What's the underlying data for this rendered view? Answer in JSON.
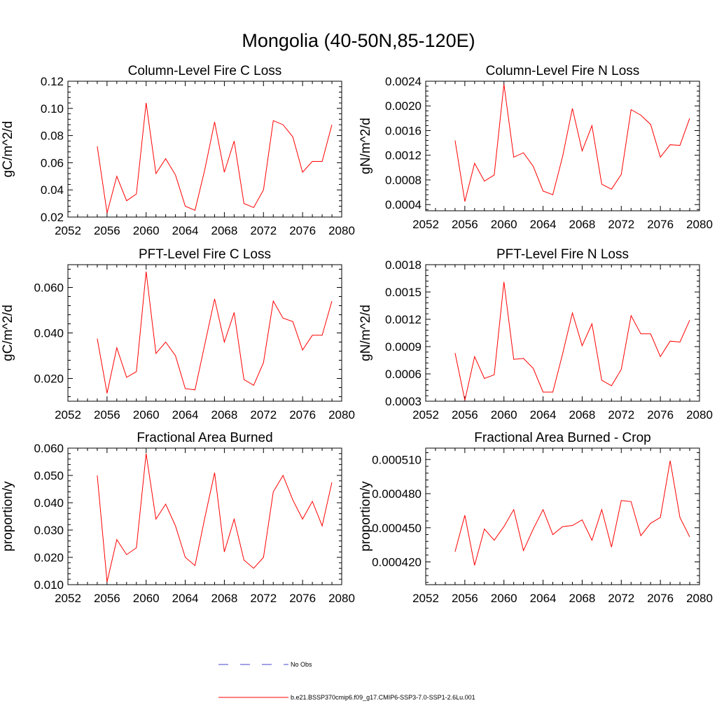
{
  "title": "Mongolia (40-50N,85-120E)",
  "colors": {
    "series": "#ff0000",
    "obs": "#4444cc",
    "axis": "#000000"
  },
  "legend": {
    "items": [
      {
        "label": "No Obs",
        "style": "dashed",
        "color": "#4444cc"
      },
      {
        "label": "b.e21.BSSP370cmip6.f09_g17.CMIP6-SSP3-7.0-SSP1-2.6Lu.001",
        "style": "solid",
        "color": "#ff0000"
      }
    ]
  },
  "chart_data": [
    {
      "type": "line",
      "title": "Column-Level Fire C Loss",
      "ylabel": "gC/m^2/d",
      "xlim": [
        2052,
        2080
      ],
      "ylim": [
        0.02,
        0.12
      ],
      "xticks": [
        2052,
        2056,
        2060,
        2064,
        2068,
        2072,
        2076,
        2080
      ],
      "yticks": [
        "0.02",
        "0.04",
        "0.06",
        "0.08",
        "0.10",
        "0.12"
      ],
      "x": [
        2055,
        2056,
        2057,
        2058,
        2059,
        2060,
        2061,
        2062,
        2063,
        2064,
        2065,
        2066,
        2067,
        2068,
        2069,
        2070,
        2071,
        2072,
        2073,
        2074,
        2075,
        2076,
        2077,
        2078,
        2079
      ],
      "values": [
        0.072,
        0.023,
        0.05,
        0.032,
        0.037,
        0.104,
        0.052,
        0.063,
        0.051,
        0.028,
        0.025,
        0.055,
        0.09,
        0.053,
        0.076,
        0.03,
        0.027,
        0.04,
        0.091,
        0.088,
        0.079,
        0.053,
        0.061,
        0.061,
        0.088
      ]
    },
    {
      "type": "line",
      "title": "Column-Level Fire N Loss",
      "ylabel": "gN/m^2/d",
      "xlim": [
        2052,
        2080
      ],
      "ylim": [
        0.0003,
        0.0024
      ],
      "xticks": [
        2052,
        2056,
        2060,
        2064,
        2068,
        2072,
        2076,
        2080
      ],
      "yticks": [
        "0.0004",
        "0.0008",
        "0.0012",
        "0.0016",
        "0.0020",
        "0.0024"
      ],
      "x": [
        2055,
        2056,
        2057,
        2058,
        2059,
        2060,
        2061,
        2062,
        2063,
        2064,
        2065,
        2066,
        2067,
        2068,
        2069,
        2070,
        2071,
        2072,
        2073,
        2074,
        2075,
        2076,
        2077,
        2078,
        2079
      ],
      "values": [
        0.00144,
        0.00045,
        0.00107,
        0.00078,
        0.00088,
        0.00235,
        0.00117,
        0.00124,
        0.00102,
        0.00062,
        0.00056,
        0.00118,
        0.00196,
        0.00127,
        0.00168,
        0.00073,
        0.00065,
        0.00089,
        0.00194,
        0.00185,
        0.0017,
        0.00117,
        0.00137,
        0.00136,
        0.0018
      ]
    },
    {
      "type": "line",
      "title": "PFT-Level Fire C Loss",
      "ylabel": "gC/m^2/d",
      "xlim": [
        2052,
        2080
      ],
      "ylim": [
        0.01,
        0.07
      ],
      "xticks": [
        2052,
        2056,
        2060,
        2064,
        2068,
        2072,
        2076,
        2080
      ],
      "yticks": [
        "0.020",
        "0.040",
        "0.060"
      ],
      "ytick_values": [
        0.02,
        0.04,
        0.06
      ],
      "x": [
        2055,
        2056,
        2057,
        2058,
        2059,
        2060,
        2061,
        2062,
        2063,
        2064,
        2065,
        2066,
        2067,
        2068,
        2069,
        2070,
        2071,
        2072,
        2073,
        2074,
        2075,
        2076,
        2077,
        2078,
        2079
      ],
      "values": [
        0.0375,
        0.0135,
        0.0335,
        0.0205,
        0.023,
        0.067,
        0.031,
        0.036,
        0.03,
        0.0155,
        0.015,
        0.035,
        0.055,
        0.036,
        0.049,
        0.0195,
        0.017,
        0.027,
        0.054,
        0.0465,
        0.045,
        0.0325,
        0.039,
        0.039,
        0.054
      ]
    },
    {
      "type": "line",
      "title": "PFT-Level Fire N Loss",
      "ylabel": "gN/m^2/d",
      "xlim": [
        2052,
        2080
      ],
      "ylim": [
        0.0003,
        0.0018
      ],
      "xticks": [
        2052,
        2056,
        2060,
        2064,
        2068,
        2072,
        2076,
        2080
      ],
      "yticks": [
        "0.0003",
        "0.0006",
        "0.0009",
        "0.0012",
        "0.0015",
        "0.0018"
      ],
      "x": [
        2055,
        2056,
        2057,
        2058,
        2059,
        2060,
        2061,
        2062,
        2063,
        2064,
        2065,
        2066,
        2067,
        2068,
        2069,
        2070,
        2071,
        2072,
        2073,
        2074,
        2075,
        2076,
        2077,
        2078,
        2079
      ],
      "values": [
        0.00083,
        0.00031,
        0.00079,
        0.00055,
        0.00059,
        0.00161,
        0.00076,
        0.00077,
        0.00066,
        0.0004,
        0.0004,
        0.00082,
        0.00127,
        0.00091,
        0.00115,
        0.00053,
        0.00047,
        0.00065,
        0.00124,
        0.00104,
        0.00104,
        0.00079,
        0.00096,
        0.00095,
        0.00119
      ]
    },
    {
      "type": "line",
      "title": "Fractional Area Burned",
      "ylabel": "proportion/y",
      "xlim": [
        2052,
        2080
      ],
      "ylim": [
        0.01,
        0.06
      ],
      "xticks": [
        2052,
        2056,
        2060,
        2064,
        2068,
        2072,
        2076,
        2080
      ],
      "yticks": [
        "0.010",
        "0.020",
        "0.030",
        "0.040",
        "0.050",
        "0.060"
      ],
      "x": [
        2055,
        2056,
        2057,
        2058,
        2059,
        2060,
        2061,
        2062,
        2063,
        2064,
        2065,
        2066,
        2067,
        2068,
        2069,
        2070,
        2071,
        2072,
        2073,
        2074,
        2075,
        2076,
        2077,
        2078,
        2079
      ],
      "values": [
        0.05,
        0.011,
        0.0265,
        0.021,
        0.0235,
        0.058,
        0.034,
        0.0395,
        0.0315,
        0.02,
        0.017,
        0.0345,
        0.051,
        0.022,
        0.034,
        0.019,
        0.016,
        0.02,
        0.044,
        0.05,
        0.041,
        0.034,
        0.0405,
        0.0315,
        0.0475
      ]
    },
    {
      "type": "line",
      "title": "Fractional Area Burned - Crop",
      "ylabel": "proportion/y",
      "xlim": [
        2052,
        2080
      ],
      "ylim": [
        0.0004,
        0.00052
      ],
      "xticks": [
        2052,
        2056,
        2060,
        2064,
        2068,
        2072,
        2076,
        2080
      ],
      "yticks": [
        "0.000420",
        "0.000450",
        "0.000480",
        "0.000510"
      ],
      "ytick_values": [
        0.00042,
        0.00045,
        0.00048,
        0.00051
      ],
      "x": [
        2055,
        2056,
        2057,
        2058,
        2059,
        2060,
        2061,
        2062,
        2063,
        2064,
        2065,
        2066,
        2067,
        2068,
        2069,
        2070,
        2071,
        2072,
        2073,
        2074,
        2075,
        2076,
        2077,
        2078,
        2079
      ],
      "values": [
        0.000429,
        0.000461,
        0.000417,
        0.000449,
        0.000439,
        0.000451,
        0.000466,
        0.00043,
        0.000449,
        0.000466,
        0.000444,
        0.000451,
        0.000452,
        0.000457,
        0.000439,
        0.000466,
        0.000433,
        0.000474,
        0.000473,
        0.000443,
        0.000454,
        0.000459,
        0.000509,
        0.000459,
        0.000442
      ]
    }
  ]
}
